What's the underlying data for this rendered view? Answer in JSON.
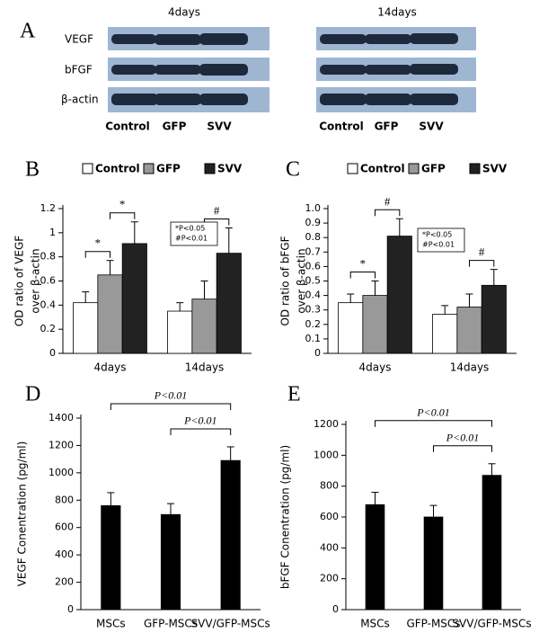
{
  "blot": {
    "label": "A",
    "titles": [
      "4days",
      "14days"
    ],
    "rows": [
      "VEGF",
      "bFGF",
      "β-actin"
    ],
    "lanes": [
      "Control",
      "GFP",
      "SVV"
    ]
  },
  "chart_data": [
    {
      "type": "bar",
      "label": "B",
      "ylabel": [
        "OD ratio of VEGF",
        "over β-actin"
      ],
      "categories": [
        "4days",
        "14days"
      ],
      "series": [
        {
          "name": "Control",
          "color": "#ffffff",
          "values": [
            0.42,
            0.35
          ],
          "errors": [
            0.09,
            0.07
          ]
        },
        {
          "name": "GFP",
          "color": "#999999",
          "values": [
            0.65,
            0.45
          ],
          "errors": [
            0.12,
            0.15
          ]
        },
        {
          "name": "SVV",
          "color": "#222222",
          "values": [
            0.91,
            0.83
          ],
          "errors": [
            0.18,
            0.21
          ]
        }
      ],
      "ylim": [
        0,
        1.2
      ],
      "yticks": [
        0,
        0.2,
        0.4,
        0.6,
        0.8,
        1,
        1.2
      ],
      "annotations": [
        "*",
        "*",
        "#"
      ],
      "note": [
        "*P<0.05",
        "#P<0.01"
      ]
    },
    {
      "type": "bar",
      "label": "C",
      "ylabel": [
        "OD ratio of bFGF",
        "over β-actin"
      ],
      "categories": [
        "4days",
        "14days"
      ],
      "series": [
        {
          "name": "Control",
          "color": "#ffffff",
          "values": [
            0.35,
            0.27
          ],
          "errors": [
            0.06,
            0.06
          ]
        },
        {
          "name": "GFP",
          "color": "#999999",
          "values": [
            0.4,
            0.32
          ],
          "errors": [
            0.1,
            0.09
          ]
        },
        {
          "name": "SVV",
          "color": "#222222",
          "values": [
            0.81,
            0.47
          ],
          "errors": [
            0.12,
            0.11
          ]
        }
      ],
      "ylim": [
        0,
        1
      ],
      "yticks": [
        0,
        0.1,
        0.2,
        0.3,
        0.4,
        0.5,
        0.6,
        0.7,
        0.8,
        0.9,
        {
          "value": 1,
          "label": "1.0"
        }
      ],
      "annotations": [
        "*",
        "#",
        "#"
      ],
      "note": [
        "*P<0.05",
        "#P<0.01"
      ]
    },
    {
      "type": "bar",
      "label": "D",
      "ylabel": [
        "VEGF Conentration (pg/ml)"
      ],
      "categories": [
        "MSCs",
        "GFP-MSCs",
        "SVV/GFP-MSCs"
      ],
      "series": [
        {
          "color": "#000000",
          "values": [
            760,
            695,
            1090
          ],
          "errors": [
            95,
            80,
            100
          ]
        }
      ],
      "ylim": [
        0,
        1400
      ],
      "yticks": [
        0,
        200,
        400,
        600,
        800,
        1000,
        1200,
        1400
      ],
      "annotations": [
        "P<0.01",
        "P<0.01"
      ]
    },
    {
      "type": "bar",
      "label": "E",
      "ylabel": [
        "bFGF Conentration (pg/ml)"
      ],
      "categories": [
        "MSCs",
        "GFP-MSCs",
        "SVV/GFP-MSCs"
      ],
      "series": [
        {
          "color": "#000000",
          "values": [
            680,
            600,
            870
          ],
          "errors": [
            80,
            75,
            75
          ]
        }
      ],
      "ylim": [
        0,
        1200
      ],
      "yticks": [
        0,
        200,
        400,
        600,
        800,
        1000,
        1200
      ],
      "annotations": [
        "P<0.01",
        "P<0.01"
      ]
    }
  ]
}
